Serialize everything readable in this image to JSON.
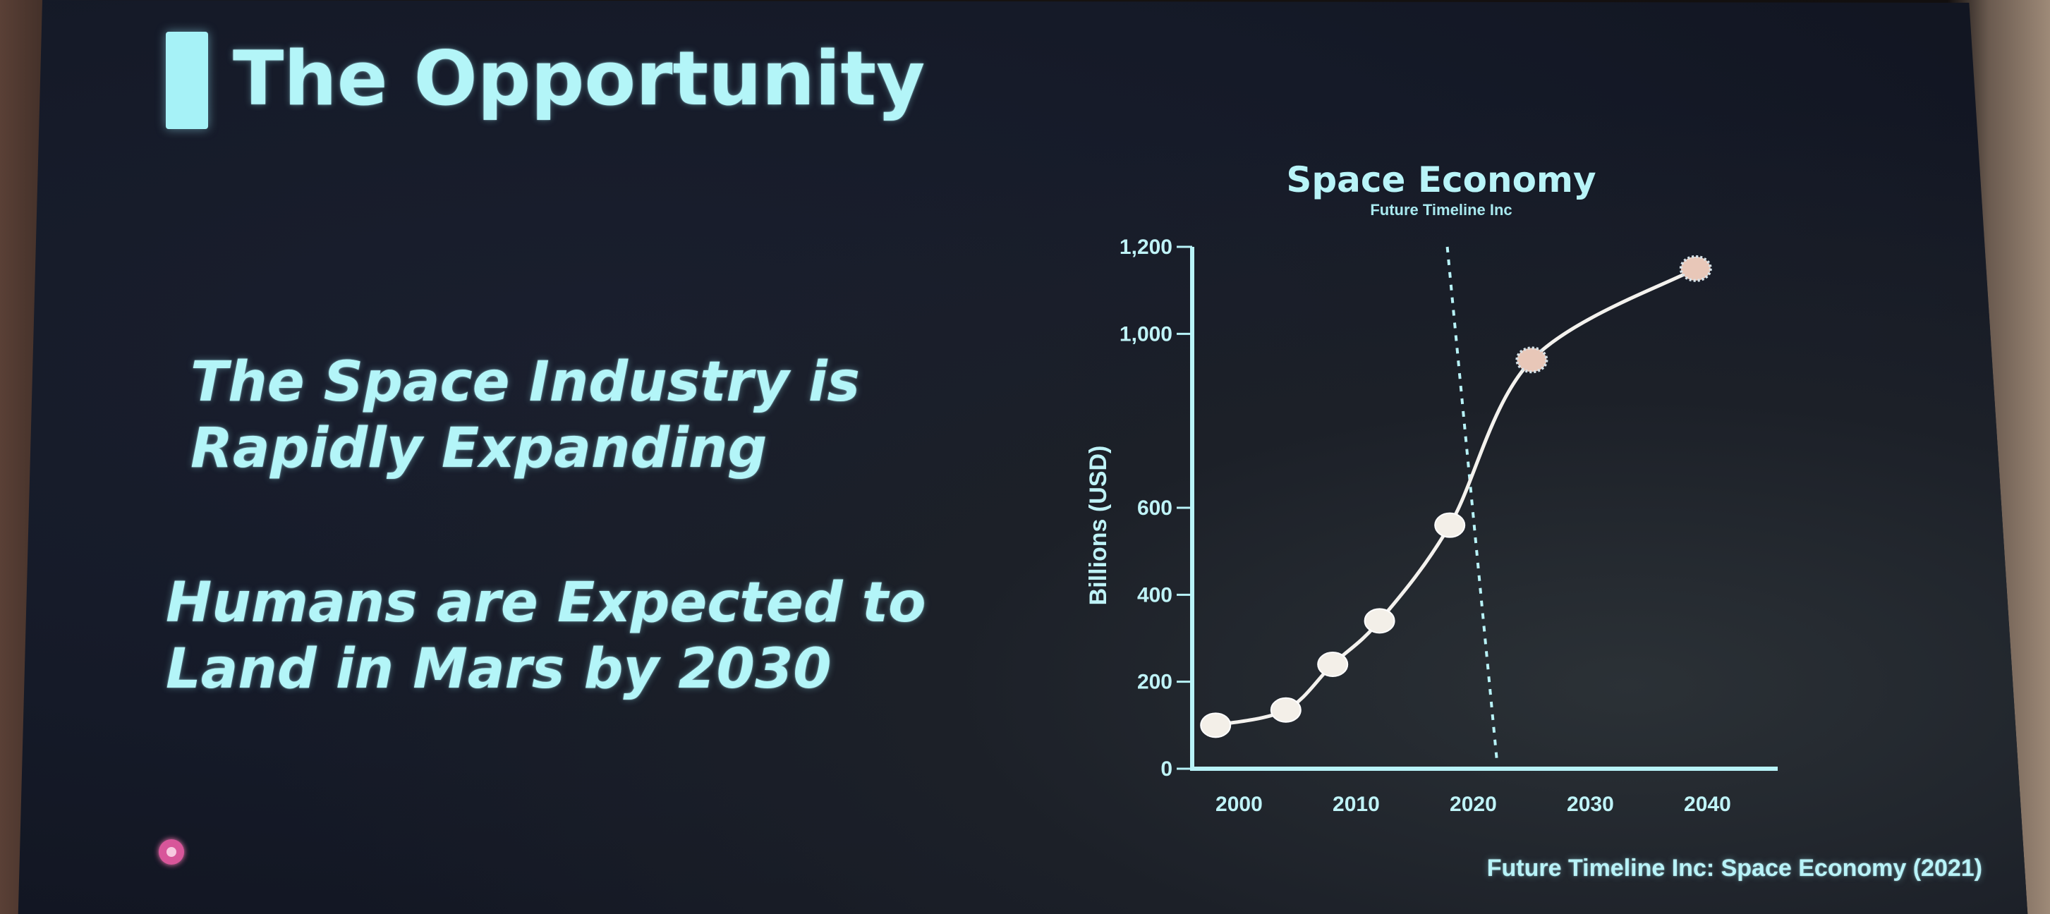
{
  "slide": {
    "title": "The Opportunity",
    "bullet_1_line_1": "The Space Industry is",
    "bullet_1_line_2": "Rapidly Expanding",
    "bullet_2_line_1": "Humans are Expected to",
    "bullet_2_line_2": "Land in Mars by 2030",
    "source": "Future Timeline Inc: Space Economy (2021)",
    "accent_color": "#a6f2f7"
  },
  "chart_data": {
    "type": "line",
    "title": "Space Economy",
    "subtitle": "Future Timeline Inc",
    "ylabel": "Billions (USD)",
    "xlabel": "",
    "ylim": [
      0,
      1200
    ],
    "xlim": [
      1996,
      2046
    ],
    "y_ticks": [
      "0",
      "200",
      "400",
      "600",
      "1,000",
      "1,200"
    ],
    "x_ticks": [
      "2000",
      "2010",
      "2020",
      "2030",
      "2040"
    ],
    "vertical_marker_x": 2022,
    "series": [
      {
        "x": [
          1998,
          2004,
          2008,
          2012,
          2018,
          2025,
          2039
        ],
        "values": [
          100,
          135,
          240,
          340,
          560,
          940,
          1150
        ],
        "projected": [
          false,
          false,
          false,
          false,
          false,
          true,
          true
        ]
      }
    ],
    "grid": false
  }
}
